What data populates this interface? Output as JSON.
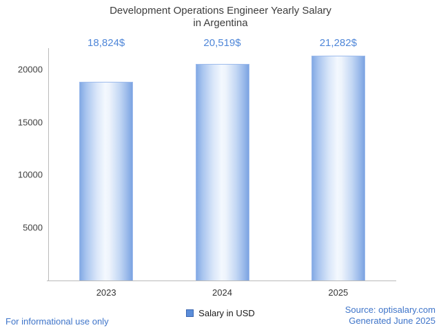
{
  "header": {
    "title_line1": "Development Operations Engineer Yearly Salary",
    "title_line2": "in Argentina"
  },
  "chart_data": {
    "type": "bar",
    "title": "Development Operations Engineer Yearly Salary in Argentina",
    "categories": [
      "2023",
      "2024",
      "2025"
    ],
    "values": [
      18824,
      20519,
      21282
    ],
    "value_labels": [
      "18,824$",
      "20,519$",
      "21,282$"
    ],
    "xlabel": "",
    "ylabel": "",
    "ylim": [
      0,
      22000
    ],
    "yticks": [
      5000,
      10000,
      15000,
      20000
    ],
    "grid": false,
    "legend_position": "bottom",
    "series_name": "Salary in USD",
    "bar_color_edge": "#7ba3e1",
    "bar_color_center": "#f3f8fe"
  },
  "legend": {
    "label": "Salary in USD",
    "marker_color": "#5b8dd9"
  },
  "footer": {
    "left": "For informational use only",
    "source": "Source: optisalary.com",
    "generated": "Generated June 2025"
  },
  "colors": {
    "value_label_blue": "#4e86d8",
    "footer_blue": "#3e74c9",
    "title_gray": "#3c3c3c",
    "axis_gray": "#b9b9b9"
  }
}
